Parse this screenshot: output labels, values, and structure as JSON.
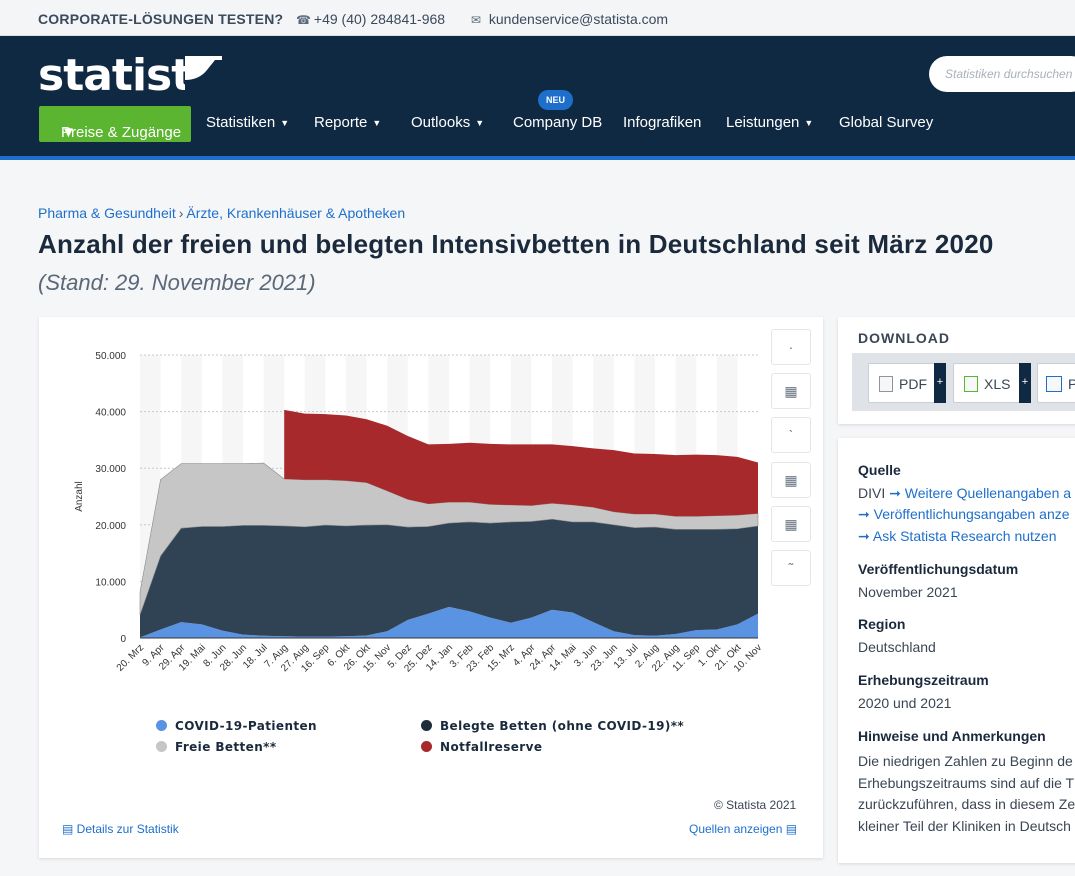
{
  "topbar": {
    "corporate_label": "CORPORATE-LÖSUNGEN TESTEN?",
    "phone": "+49 (40) 284841-968",
    "email": "kundenservice@statista.com"
  },
  "header": {
    "logo_text": "statista",
    "search_placeholder": "Statistiken durchsuchen",
    "nav": [
      {
        "label": "Preise & Zugänge"
      },
      {
        "label": "Statistiken"
      },
      {
        "label": "Reporte"
      },
      {
        "label": "Outlooks"
      },
      {
        "label": "Company DB"
      },
      {
        "label": "Infografiken"
      },
      {
        "label": "Leistungen"
      },
      {
        "label": "Global Survey"
      }
    ],
    "new_badge": "NEU"
  },
  "breadcrumb": [
    "Pharma & Gesundheit",
    "Ärzte, Krankenhäuser & Apotheken"
  ],
  "page": {
    "title": "Anzahl der freien und belegten Intensivbetten in Deutschland seit März 2020",
    "subtitle": "(Stand: 29. November 2021)"
  },
  "chart_footer": {
    "copyright": "© Statista 2021",
    "details_link": "Details zur Statistik",
    "sources_link": "Quellen anzeigen"
  },
  "chart_data": {
    "type": "area",
    "stacked": true,
    "ylabel": "Anzahl",
    "xlabel": "",
    "ylim": [
      0,
      50000
    ],
    "yticks": [
      "0",
      "10.000",
      "20.000",
      "30.000",
      "40.000",
      "50.000"
    ],
    "x_tick_labels": [
      "20. Mrz",
      "9. Apr",
      "29. Apr",
      "19. Mai",
      "8. Jun",
      "28. Jun",
      "18. Jul",
      "7. Aug",
      "27. Aug",
      "16. Sep",
      "6. Okt",
      "26. Okt",
      "15. Nov",
      "5. Dez",
      "25. Dez",
      "14. Jan",
      "3. Feb",
      "23. Feb",
      "15. Mrz",
      "4. Apr",
      "24. Apr",
      "14. Mai",
      "3. Jun",
      "23. Jun",
      "13. Jul",
      "2. Aug",
      "22. Aug",
      "11. Sep",
      "1. Okt",
      "21. Okt",
      "10. Nov"
    ],
    "grid": true,
    "legend_position": "bottom",
    "series": [
      {
        "name": "COVID-19-Patienten",
        "color": "#5b93e3",
        "values": [
          100,
          1500,
          2800,
          2400,
          1300,
          600,
          400,
          300,
          250,
          250,
          300,
          450,
          1200,
          3200,
          4300,
          5500,
          4700,
          3600,
          2700,
          3600,
          5000,
          4500,
          2800,
          1200,
          500,
          400,
          700,
          1400,
          1500,
          2400,
          4300
        ]
      },
      {
        "name": "Belegte Betten (ohne COVID-19)**",
        "color": "#304355",
        "values": [
          4000,
          13000,
          16600,
          17300,
          18400,
          19300,
          19500,
          19500,
          19400,
          19700,
          19500,
          19500,
          18800,
          16400,
          15400,
          14800,
          15800,
          16700,
          17800,
          17000,
          16000,
          16000,
          17700,
          18800,
          19000,
          19200,
          18500,
          17800,
          17700,
          16900,
          15500
        ]
      },
      {
        "name": "Freie Betten**",
        "color": "#c6c6c6",
        "values": [
          4000,
          13500,
          11400,
          11100,
          11100,
          10900,
          11000,
          8300,
          8300,
          8000,
          8000,
          7500,
          6000,
          4900,
          4000,
          3700,
          3500,
          3300,
          3000,
          2800,
          2800,
          3000,
          2600,
          2300,
          2400,
          2300,
          2300,
          2300,
          2400,
          2400,
          2200
        ]
      },
      {
        "name": "Notfallreserve",
        "color": "#a7292c",
        "values": [
          0,
          0,
          0,
          0,
          0,
          0,
          0,
          12200,
          11700,
          11600,
          11500,
          11200,
          11500,
          11200,
          10500,
          10300,
          10500,
          10700,
          10700,
          10800,
          10400,
          10400,
          10400,
          10900,
          10700,
          10600,
          10800,
          10900,
          10700,
          10300,
          9000
        ]
      }
    ]
  },
  "download": {
    "title": "DOWNLOAD",
    "buttons": [
      {
        "label": "PDF"
      },
      {
        "label": "XLS"
      },
      {
        "label": "P"
      }
    ],
    "plus": "+"
  },
  "info": {
    "source_heading": "Quelle",
    "source_name": "DIVI",
    "links": [
      "Weitere Quellenangaben a",
      "Veröffentlichungsangaben anze",
      "Ask Statista Research nutzen"
    ],
    "pubdate_heading": "Veröffentlichungsdatum",
    "pubdate": "November 2021",
    "region_heading": "Region",
    "region": "Deutschland",
    "period_heading": "Erhebungszeitraum",
    "period": "2020 und 2021",
    "notes_heading": "Hinweise und Anmerkungen",
    "notes_lines": [
      "Die niedrigen Zahlen zu Beginn de",
      "Erhebungszeitraums sind auf die T",
      "zurückzuführen, dass in diesem Ze",
      "kleiner Teil der Kliniken in Deutsch"
    ]
  }
}
